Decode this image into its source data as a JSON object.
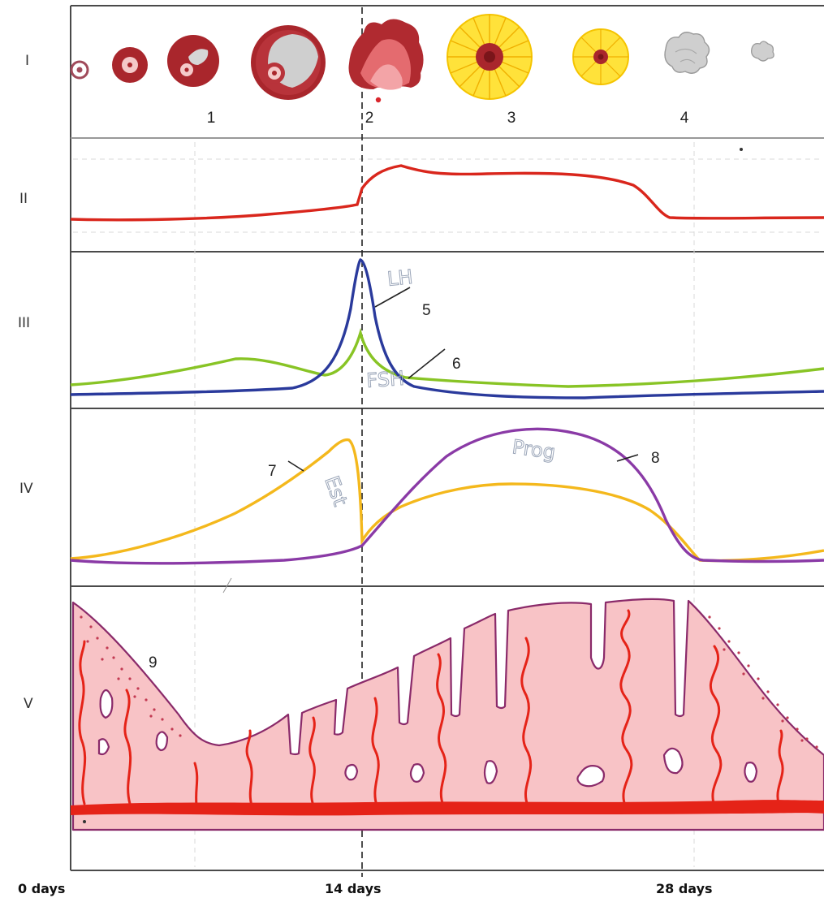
{
  "panel_labels": {
    "i": "I",
    "ii": "II",
    "iii": "III",
    "iv": "IV",
    "v": "V"
  },
  "callouts": {
    "c1": "1",
    "c2": "2",
    "c3": "3",
    "c4": "4",
    "c5": "5",
    "c6": "6",
    "c7": "7",
    "c8": "8",
    "c9": "9"
  },
  "pencil_notes": {
    "lh": "LH",
    "fsh": "FSH",
    "est": "Est",
    "prog": "Prog"
  },
  "x_axis": {
    "start": "0 days",
    "mid": "14 days",
    "end": "28 days"
  },
  "colors": {
    "temperature": "#d9261c",
    "lh": "#2a3a9c",
    "fsh": "#88c425",
    "estrogen": "#f4b81c",
    "progesterone": "#8a3aa6",
    "follicle": "#a9262c",
    "corpus_luteum": "#ffe23a",
    "endometrium_fill": "#f8c3c6",
    "endometrium_outline": "#8a2a6a",
    "vessels": "#e52318"
  }
}
